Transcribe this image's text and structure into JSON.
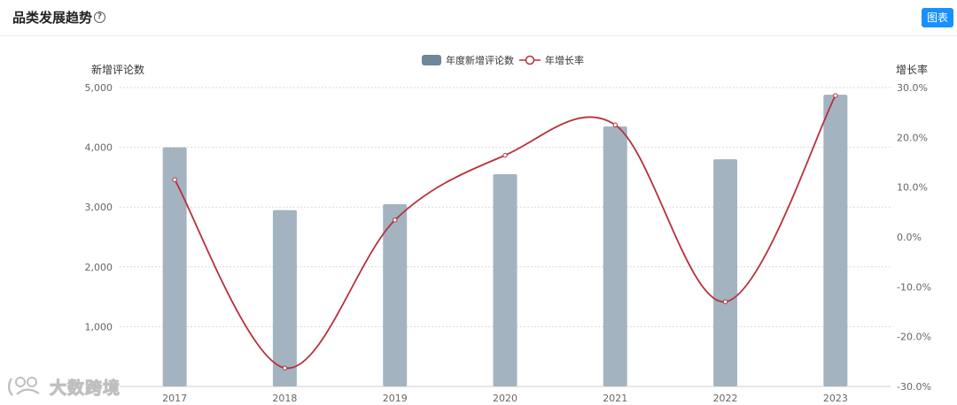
{
  "header": {
    "title": "品类发展趋势",
    "help_icon": "question-circle-icon",
    "chart_button": "图表"
  },
  "watermark": {
    "text": "大数跨境",
    "logo_icon": "brand-logo-icon"
  },
  "colors": {
    "bar": "#a3b4c0",
    "bar_legend": "#6e8799",
    "line": "#b5313d",
    "grid": "#d9d9d9",
    "axis_text": "#666666"
  },
  "chart_data": {
    "type": "bar",
    "categories": [
      "2017",
      "2018",
      "2019",
      "2020",
      "2021",
      "2022",
      "2023"
    ],
    "series": [
      {
        "name": "年度新增评论数",
        "type": "bar",
        "axis": "left",
        "values": [
          4000,
          2950,
          3050,
          3550,
          4350,
          3800,
          4880
        ]
      },
      {
        "name": "年增长率",
        "type": "line",
        "smooth": true,
        "axis": "right",
        "values": [
          11.5,
          -26.3,
          3.4,
          16.4,
          22.5,
          -13.0,
          28.4
        ]
      }
    ],
    "y_left": {
      "label": "新增评论数",
      "min": 0,
      "max": 5000,
      "ticks": [
        "1,000",
        "2,000",
        "3,000",
        "4,000",
        "5,000"
      ]
    },
    "y_right": {
      "label": "增长率",
      "min": -30,
      "max": 30,
      "ticks": [
        "-30.0%",
        "-20.0%",
        "-10.0%",
        "0.0%",
        "10.0%",
        "20.0%",
        "30.0%"
      ]
    },
    "legend": {
      "position": "top-center"
    },
    "grid": true
  }
}
